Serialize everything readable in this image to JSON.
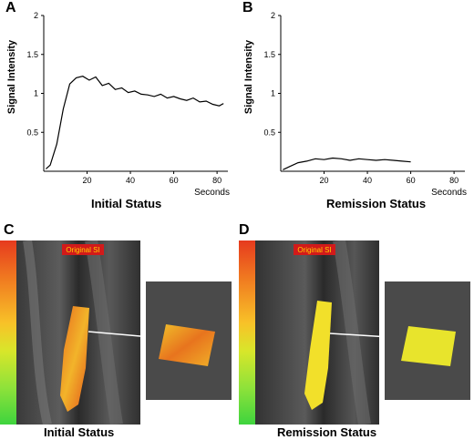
{
  "panels": {
    "a": {
      "letter": "A",
      "caption": "Initial  Status"
    },
    "b": {
      "letter": "B",
      "caption": "Remission  Status"
    },
    "c": {
      "letter": "C",
      "caption": "Initial Status",
      "overlay_label": "Original SI"
    },
    "d": {
      "letter": "D",
      "caption": "Remission Status",
      "overlay_label": "Original SI"
    }
  },
  "colors": {
    "line": "#000000",
    "axis": "#000000",
    "colorbar": [
      "#e63a1e",
      "#f07820",
      "#f8c228",
      "#d8e62a",
      "#8fe23a",
      "#3ed43e"
    ],
    "overlay_hot": "#e86a1e",
    "overlay_cool": "#f2e02a",
    "label_bg": "#d21a1a",
    "label_text": "#ffd200"
  },
  "chart_data": [
    {
      "type": "line",
      "ylabel": "Signal  Intensity",
      "x_unit_label": "Seconds",
      "xlim": [
        0,
        85
      ],
      "ylim": [
        0,
        2
      ],
      "x_ticks": [
        "20",
        "40",
        "60",
        "80"
      ],
      "y_ticks": [
        "0.5",
        "1",
        "1.5",
        "2"
      ],
      "series": [
        {
          "x": [
            1,
            3,
            6,
            9,
            12,
            15,
            18,
            21,
            24,
            27,
            30,
            33,
            36,
            39,
            42,
            45,
            48,
            51,
            54,
            57,
            60,
            63,
            66,
            69,
            72,
            75,
            78,
            81,
            83
          ],
          "y": [
            0.03,
            0.08,
            0.35,
            0.8,
            1.12,
            1.2,
            1.22,
            1.17,
            1.21,
            1.1,
            1.13,
            1.05,
            1.07,
            1.01,
            1.03,
            0.99,
            0.98,
            0.96,
            0.99,
            0.94,
            0.96,
            0.93,
            0.91,
            0.94,
            0.89,
            0.9,
            0.86,
            0.84,
            0.87
          ]
        }
      ]
    },
    {
      "type": "line",
      "ylabel": "Signal  Intensity",
      "x_unit_label": "Seconds",
      "xlim": [
        0,
        85
      ],
      "ylim": [
        0,
        2
      ],
      "x_ticks": [
        "20",
        "40",
        "60",
        "80"
      ],
      "y_ticks": [
        "0.5",
        "1",
        "1.5",
        "2"
      ],
      "series": [
        {
          "x": [
            1,
            4,
            8,
            12,
            16,
            20,
            24,
            28,
            32,
            36,
            40,
            44,
            48,
            52,
            56,
            60
          ],
          "y": [
            0.02,
            0.06,
            0.11,
            0.13,
            0.16,
            0.15,
            0.17,
            0.16,
            0.14,
            0.16,
            0.15,
            0.14,
            0.15,
            0.14,
            0.13,
            0.12
          ]
        }
      ]
    }
  ]
}
